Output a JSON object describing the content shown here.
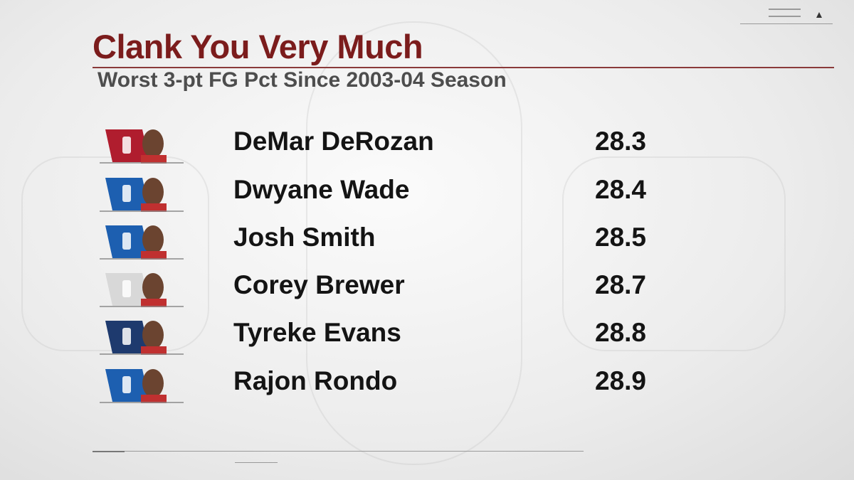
{
  "header": {
    "title": "Clank You Very Much",
    "subtitle": "Worst 3-pt FG Pct Since 2003-04 Season"
  },
  "table": {
    "rows": [
      [
        "DeMar DeRozan",
        28.3
      ],
      [
        "Dwyane Wade",
        28.4
      ],
      [
        "Josh Smith",
        28.5
      ],
      [
        "Corey Brewer",
        28.7
      ],
      [
        "Tyreke Evans",
        28.8
      ],
      [
        "Rajon Rondo",
        28.9
      ]
    ]
  }
}
